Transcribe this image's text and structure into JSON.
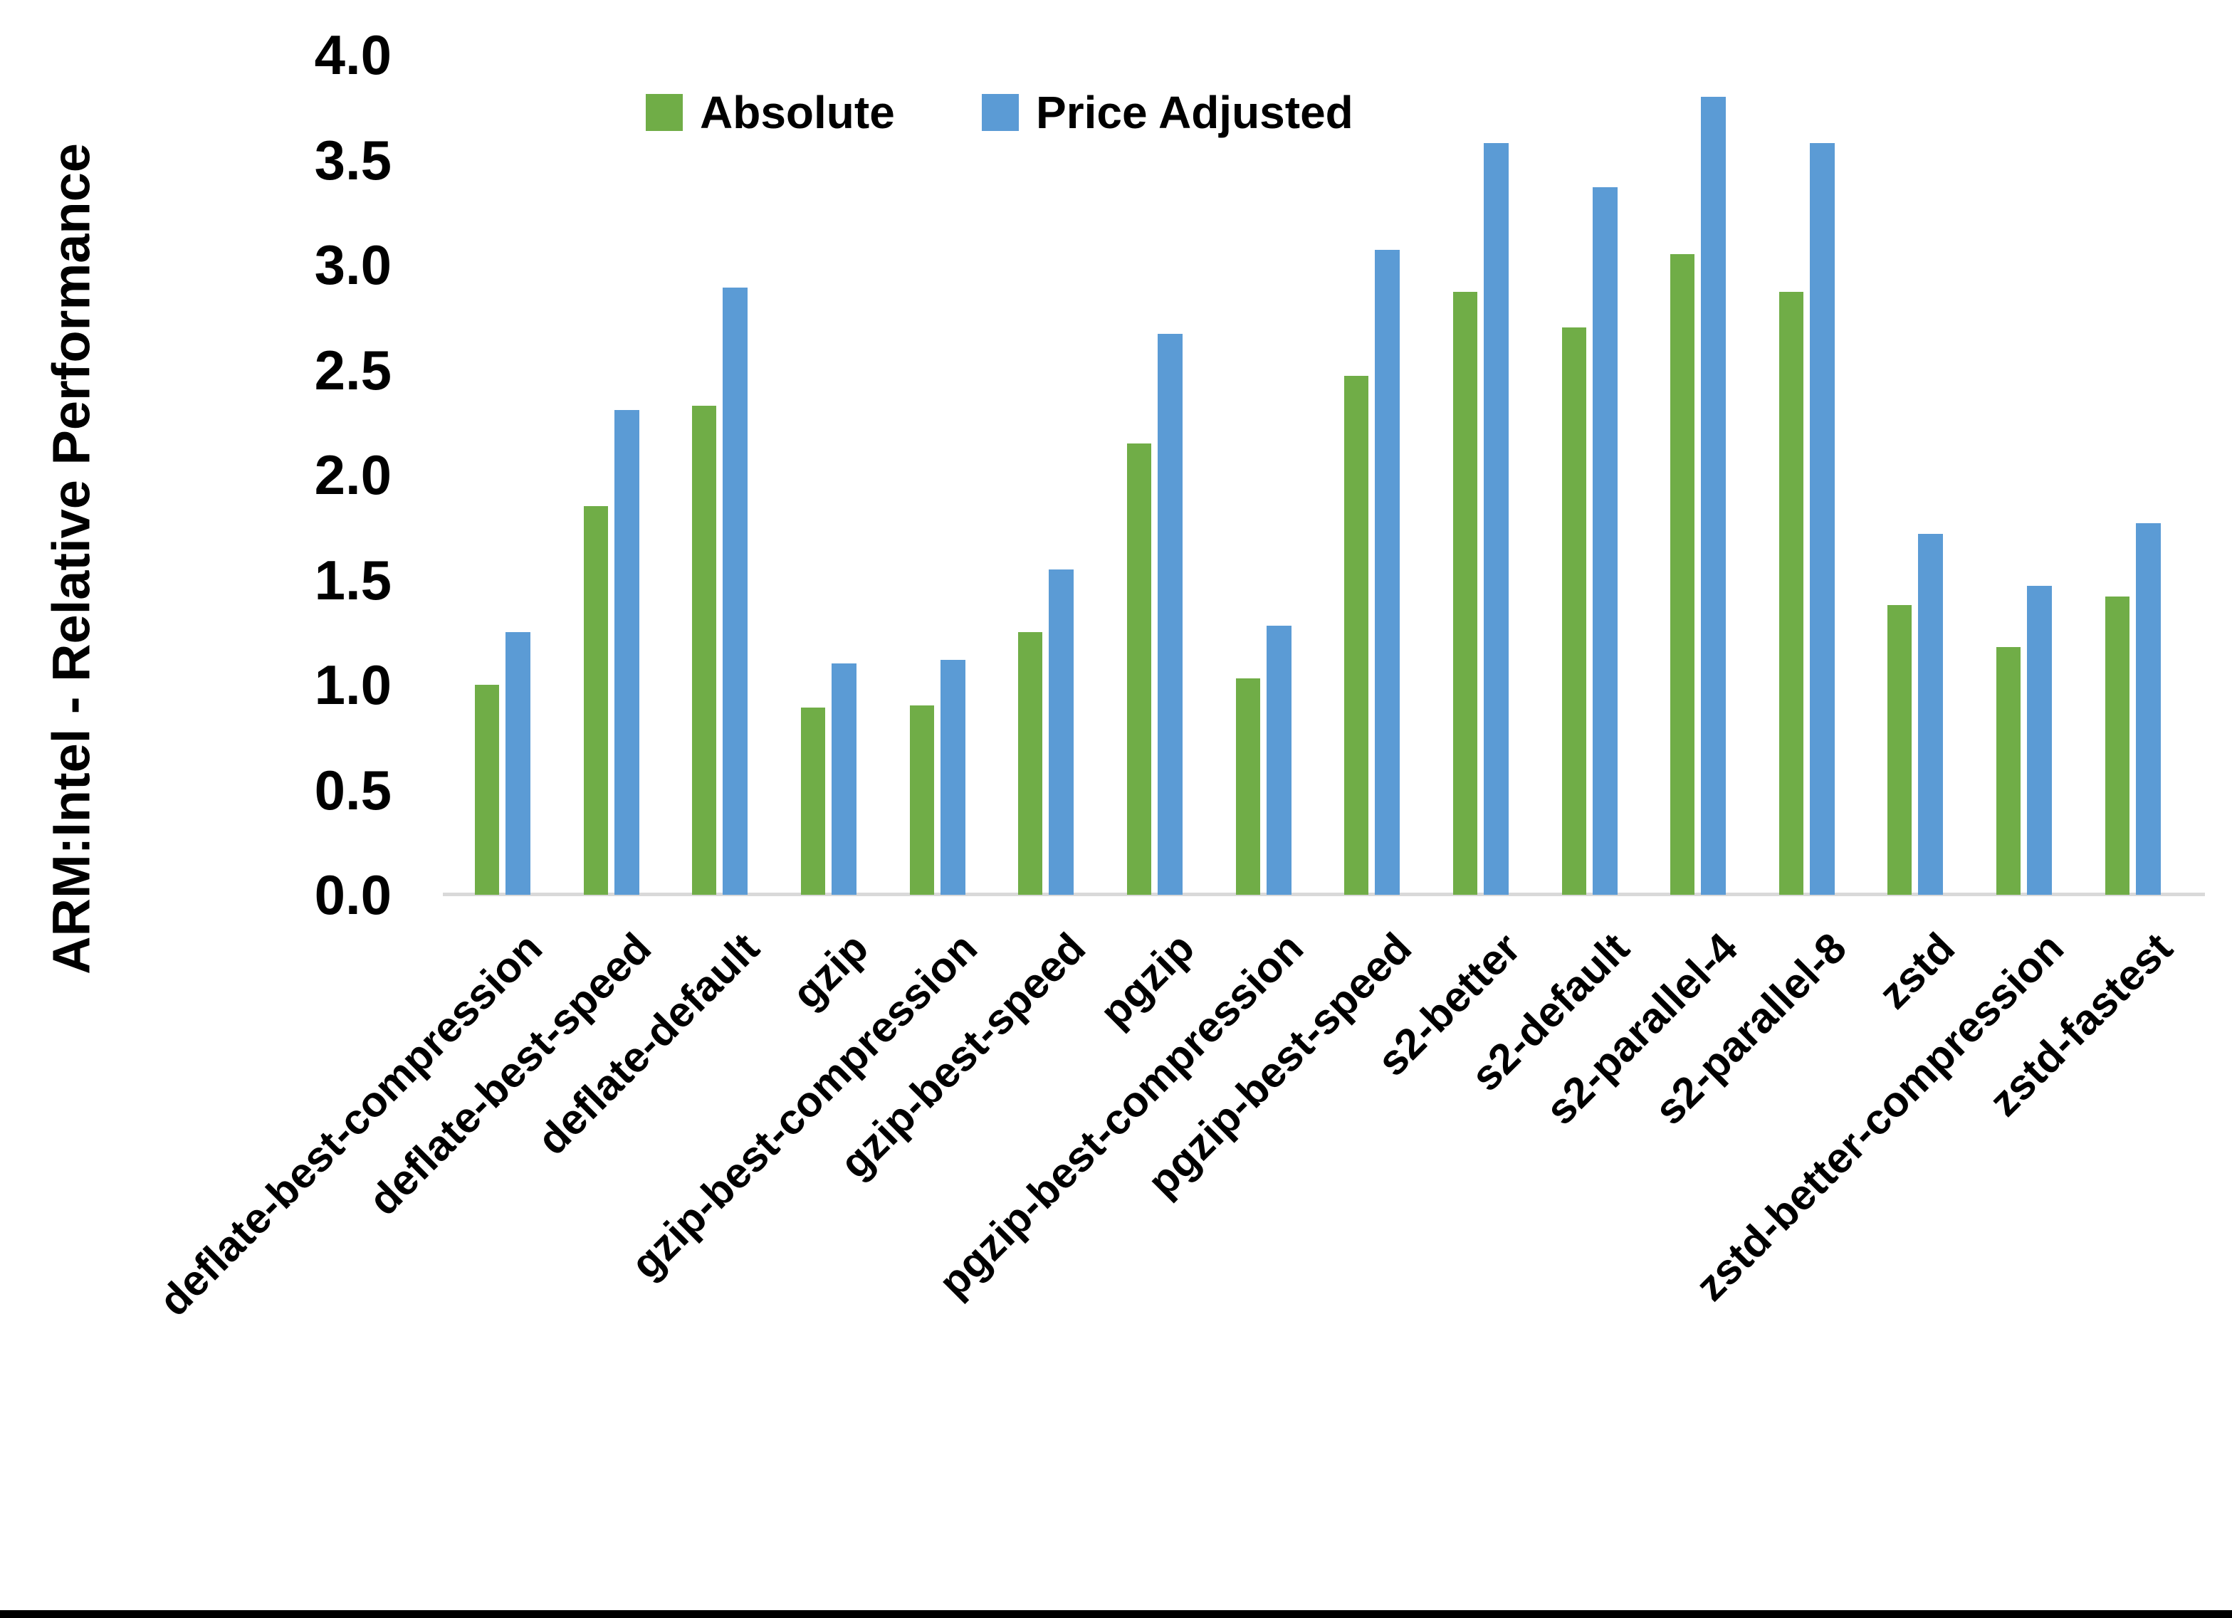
{
  "chart_data": {
    "type": "bar",
    "title": "",
    "ylabel": "ARM:Intel - Relative Performance",
    "xlabel": "",
    "ylim": [
      0.0,
      4.0
    ],
    "ytick_labels": [
      "0.0",
      "0.5",
      "1.0",
      "1.5",
      "2.0",
      "2.5",
      "3.0",
      "3.5",
      "4.0"
    ],
    "grid": false,
    "legend_position": "top-center",
    "axis_line_color": "#D9D9D9",
    "text_color": "#000000",
    "categories": [
      "deflate-best-compression",
      "deflate-best-speed",
      "deflate-default",
      "gzip",
      "gzip-best-compression",
      "gzip-best-speed",
      "pgzip",
      "pgzip-best-compression",
      "pgzip-best-speed",
      "s2-better",
      "s2-default",
      "s2-parallel-4",
      "s2-parallel-8",
      "zstd",
      "zstd-better-compression",
      "zstd-fastest"
    ],
    "series": [
      {
        "name": "Absolute",
        "color": "#70AD47",
        "values": [
          1.0,
          1.85,
          2.33,
          0.89,
          0.9,
          1.25,
          2.15,
          1.03,
          2.47,
          2.87,
          2.7,
          3.05,
          2.87,
          1.38,
          1.18,
          1.42
        ]
      },
      {
        "name": "Price Adjusted",
        "color": "#5B9BD5",
        "values": [
          1.25,
          2.31,
          2.89,
          1.1,
          1.12,
          1.55,
          2.67,
          1.28,
          3.07,
          3.58,
          3.37,
          3.8,
          3.58,
          1.72,
          1.47,
          1.77
        ]
      }
    ]
  }
}
